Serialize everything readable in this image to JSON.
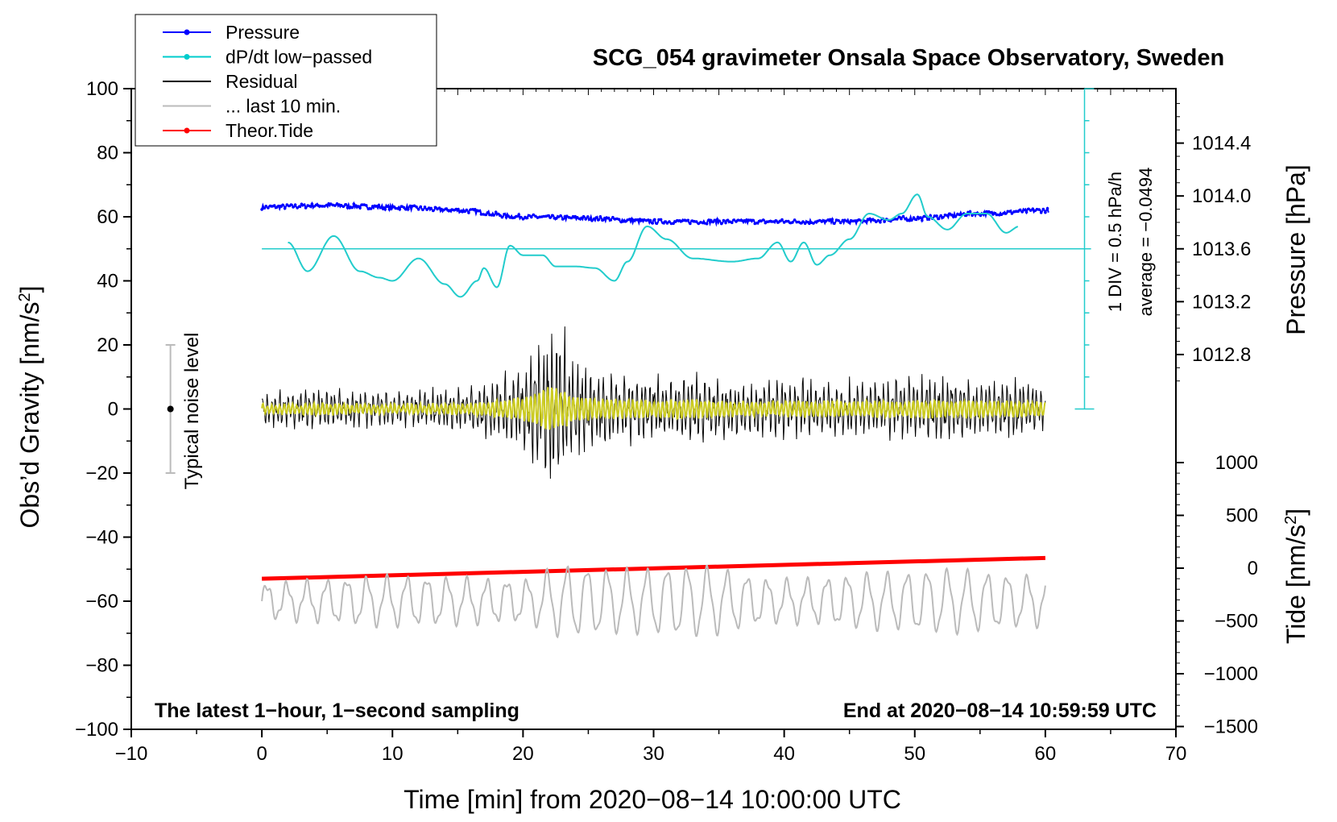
{
  "chart_data": {
    "type": "line",
    "title": "SCG_054 gravimeter Onsala Space Observatory, Sweden",
    "xlabel": "Time [min] from 2020−08−14 10:00:00 UTC",
    "ylabel_prefix": "Obs’d Gravity [nm/s",
    "ylabel_sup": "2",
    "ylabel_suffix": "]",
    "y2label": "Pressure [hPa]",
    "y3label_prefix": "Tide [nm/s",
    "y3label_sup": "2",
    "y3label_suffix": "]",
    "xlim": [
      -10,
      70
    ],
    "ylim": [
      -100,
      100
    ],
    "x_ticks": [
      "−10",
      "0",
      "10",
      "20",
      "30",
      "40",
      "50",
      "60",
      "70"
    ],
    "y_ticks": [
      "100",
      "80",
      "60",
      "40",
      "20",
      "0",
      "−20",
      "−40",
      "−60",
      "−80",
      "−100"
    ],
    "pressure_ticks": [
      "1014.4",
      "1014.0",
      "1013.6",
      "1013.2",
      "1012.8"
    ],
    "pressure_tick_values": [
      1014.4,
      1014.0,
      1013.6,
      1013.2,
      1012.8
    ],
    "tide_ticks": [
      "1000",
      "500",
      "0",
      "−500",
      "−1000",
      "−1500"
    ],
    "tide_tick_values": [
      1000,
      500,
      0,
      -500,
      -1000,
      -1500
    ],
    "bottom_left_note": "The latest 1−hour, 1−second sampling",
    "bottom_right_note": "End at 2020−08−14 10:59:59 UTC",
    "noise_label": "Typical noise level",
    "scale_label": "1 DIV = 0.5 hPa/h",
    "average_label": "average = −0.0494",
    "legend": [
      {
        "label": "Pressure",
        "color": "#0000ff",
        "marker": true
      },
      {
        "label": "dP/dt low−passed",
        "color": "#00cccc",
        "marker": true
      },
      {
        "label": "Residual",
        "color": "#000000",
        "marker": false
      },
      {
        "label": "... last 10 min.",
        "color": "#bbbbbb",
        "marker": false
      },
      {
        "label": "Theor.Tide",
        "color": "#ff0000",
        "marker": true
      }
    ],
    "colors": {
      "pressure": "#0000ff",
      "dpdt": "#22cccc",
      "residual": "#000000",
      "residual_filtered": "#cccc22",
      "last10": "#bbbbbb",
      "tide": "#ff0000",
      "noise_bar": "#bbbbbb"
    },
    "series": {
      "pressure": {
        "name": "Pressure",
        "x": [
          0,
          5,
          10,
          15,
          20,
          25,
          30,
          35,
          40,
          45,
          50,
          55,
          60
        ],
        "y": [
          63,
          63.5,
          63,
          62,
          60,
          59.5,
          58.5,
          58.5,
          58.5,
          58.5,
          59.5,
          61,
          62
        ]
      },
      "dpdt": {
        "name": "dP/dt low-passed",
        "x": [
          2,
          3.5,
          5.5,
          7.5,
          9,
          10,
          12,
          14,
          15.2,
          16.5,
          17,
          18,
          19,
          20,
          21.5,
          22.5,
          24,
          25.5,
          27,
          28,
          29.5,
          31,
          33,
          36,
          38,
          39.5,
          40.5,
          41.5,
          42.5,
          43.5,
          45,
          46.5,
          48,
          49,
          50.2,
          51,
          52.5,
          54,
          55.5,
          57,
          58
        ],
        "y": [
          52,
          43,
          54,
          43,
          41,
          40,
          47,
          39,
          35,
          40,
          44,
          38,
          51,
          48,
          48,
          44.5,
          44.5,
          44,
          40,
          46,
          57,
          53,
          47,
          46,
          47,
          52,
          46,
          52,
          45,
          48,
          53,
          61,
          59,
          61,
          67,
          60,
          56,
          61,
          61,
          55,
          57
        ]
      },
      "residual": {
        "name": "Residual",
        "x_range": [
          0,
          60
        ],
        "amplitude": "±25 peak near 22–23 min"
      },
      "last10": {
        "name": "... last 10 min.",
        "x_range": [
          0,
          60
        ],
        "center": -60,
        "amplitude": 10
      },
      "tide": {
        "name": "Theor.Tide",
        "x": [
          0,
          60
        ],
        "y_tide_units": [
          -100,
          100
        ],
        "y_gravity_units": [
          -53,
          -46.5
        ]
      }
    },
    "reference_line_y": 50,
    "noise_bar": {
      "x": -7,
      "y_range": [
        -20,
        20
      ]
    }
  }
}
